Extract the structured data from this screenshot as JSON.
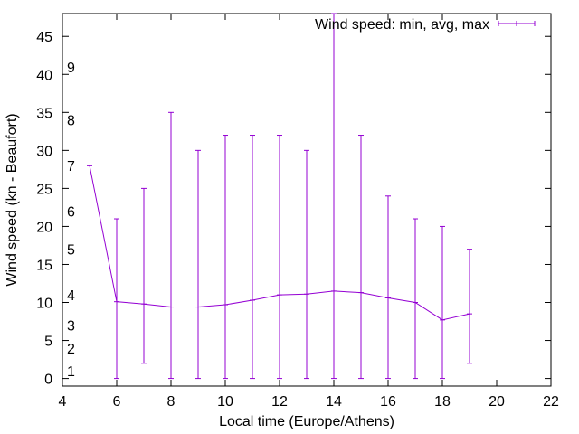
{
  "colors": {
    "series": "#9400d3",
    "axis": "#000000",
    "background": "#ffffff"
  },
  "chart_data": {
    "type": "line",
    "title": "",
    "xlabel": "Local time (Europe/Athens)",
    "ylabel": "Wind speed (kn - Beaufort)",
    "xlim": [
      4,
      22
    ],
    "ylim": [
      -1,
      48
    ],
    "xticks": [
      4,
      6,
      8,
      10,
      12,
      14,
      16,
      18,
      20,
      22
    ],
    "yticks": [
      0,
      5,
      10,
      15,
      20,
      25,
      30,
      35,
      40,
      45
    ],
    "grid": false,
    "legend": {
      "placement": "top-right",
      "entries": [
        "Wind speed: min, avg, max"
      ]
    },
    "beaufort_labels": [
      {
        "text": "1",
        "y": 1
      },
      {
        "text": "2",
        "y": 4
      },
      {
        "text": "3",
        "y": 7
      },
      {
        "text": "4",
        "y": 11
      },
      {
        "text": "5",
        "y": 17
      },
      {
        "text": "6",
        "y": 22
      },
      {
        "text": "7",
        "y": 28
      },
      {
        "text": "8",
        "y": 34
      },
      {
        "text": "9",
        "y": 41
      }
    ],
    "series": [
      {
        "name": "Wind speed: min, avg, max",
        "x": [
          5,
          6,
          7,
          8,
          9,
          10,
          11,
          12,
          13,
          14,
          15,
          16,
          17,
          18,
          19
        ],
        "avg": [
          28,
          10.1,
          9.8,
          9.4,
          9.4,
          9.7,
          10.3,
          11,
          11.1,
          11.5,
          11.3,
          10.6,
          10,
          7.7,
          8.5
        ],
        "min": [
          28,
          0,
          2,
          0,
          0,
          0,
          0,
          0,
          0,
          0,
          0,
          0,
          0,
          0,
          2
        ],
        "max": [
          28,
          21,
          25,
          35,
          30,
          32,
          32,
          32,
          30,
          48,
          32,
          24,
          21,
          20,
          17
        ]
      }
    ]
  }
}
